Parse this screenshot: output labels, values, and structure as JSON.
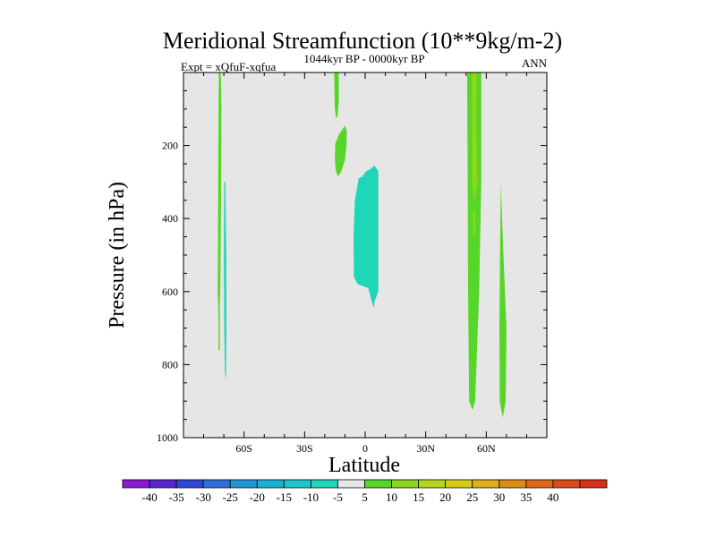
{
  "chart_data": {
    "type": "contour",
    "title": "Meridional Streamfunction (10**9kg/m-2)",
    "subtitle": "1044kyr BP - 0000kyr BP",
    "left_label": "Expt = xQfuF-xqfua",
    "right_label": "ANN",
    "xlabel": "Latitude",
    "ylabel": "Pressure (in hPa)",
    "xlim": [
      -90,
      90
    ],
    "ylim": [
      0,
      1000
    ],
    "y_inverted": true,
    "x_ticks": [
      {
        "value": -60,
        "label": "60S"
      },
      {
        "value": -30,
        "label": "30S"
      },
      {
        "value": 0,
        "label": "0"
      },
      {
        "value": 30,
        "label": "30N"
      },
      {
        "value": 60,
        "label": "60N"
      }
    ],
    "y_ticks": [
      {
        "value": 200,
        "label": "200"
      },
      {
        "value": 400,
        "label": "400"
      },
      {
        "value": 600,
        "label": "600"
      },
      {
        "value": 800,
        "label": "800"
      },
      {
        "value": 1000,
        "label": "1000"
      }
    ],
    "colorbar": {
      "colors": [
        "#8a1ad6",
        "#5a24d4",
        "#2d47d8",
        "#2f6fd8",
        "#2196d6",
        "#18b0d6",
        "#1ac6d0",
        "#1ed6b8",
        "#e6e6e6",
        "#56d628",
        "#8ed61a",
        "#b6d61a",
        "#d8cc1a",
        "#e0b018",
        "#e08c16",
        "#e0661a",
        "#de4a1a",
        "#d83018"
      ],
      "labels": [
        "-40",
        "-35",
        "-30",
        "-25",
        "-20",
        "-15",
        "-10",
        "-5",
        "5",
        "10",
        "15",
        "20",
        "25",
        "30",
        "35",
        "40"
      ]
    },
    "features": [
      {
        "name": "strip-70s-positive",
        "level": 5,
        "color": "#56d628",
        "points": [
          [
            -72.5,
            0
          ],
          [
            -71.5,
            0
          ],
          [
            -71.2,
            100
          ],
          [
            -71.3,
            300
          ],
          [
            -71.8,
            600
          ],
          [
            -72.5,
            700
          ],
          [
            -73,
            600
          ],
          [
            -72.8,
            300
          ],
          [
            -72.6,
            100
          ]
        ]
      },
      {
        "name": "strip-70s-lower",
        "level": 5,
        "color": "#56d628",
        "points": [
          [
            -72.6,
            600
          ],
          [
            -72,
            600
          ],
          [
            -72,
            760
          ],
          [
            -72.6,
            760
          ]
        ]
      },
      {
        "name": "strip-70s-negative",
        "level": -5,
        "color": "#1ed6b8",
        "points": [
          [
            -69.8,
            300
          ],
          [
            -69.2,
            300
          ],
          [
            -68.8,
            500
          ],
          [
            -68.7,
            700
          ],
          [
            -69,
            840
          ],
          [
            -69.5,
            820
          ],
          [
            -69.8,
            700
          ],
          [
            -70,
            500
          ]
        ]
      },
      {
        "name": "upper-15s-positive",
        "level": 5,
        "color": "#56d628",
        "points": [
          [
            -15.3,
            0
          ],
          [
            -13.1,
            0
          ],
          [
            -13.1,
            80
          ],
          [
            -13.7,
            120
          ],
          [
            -14.5,
            125
          ],
          [
            -15.1,
            90
          ]
        ]
      },
      {
        "name": "mid-15s-positive",
        "level": 5,
        "color": "#56d628",
        "points": [
          [
            -9.2,
            200
          ],
          [
            -9.1,
            160
          ],
          [
            -10,
            145
          ],
          [
            -13,
            170
          ],
          [
            -14.8,
            195
          ],
          [
            -15,
            240
          ],
          [
            -14.5,
            270
          ],
          [
            -13.4,
            285
          ],
          [
            -11.8,
            270
          ],
          [
            -10,
            240
          ]
        ]
      },
      {
        "name": "equatorial-negative",
        "level": -5,
        "color": "#1ed6b8",
        "points": [
          [
            4.6,
            255
          ],
          [
            6.5,
            270
          ],
          [
            6.5,
            600
          ],
          [
            4.5,
            630
          ],
          [
            4.5,
            645
          ],
          [
            3.4,
            630
          ],
          [
            1.5,
            590
          ],
          [
            -3.6,
            580
          ],
          [
            -5.6,
            560
          ],
          [
            -5.7,
            450
          ],
          [
            -5.1,
            350
          ],
          [
            -3.2,
            290
          ],
          [
            -1.4,
            285
          ],
          [
            0.5,
            270
          ],
          [
            2.5,
            265
          ]
        ]
      },
      {
        "name": "strip-50n-positive",
        "level": 5,
        "color": "#56d628",
        "points": [
          [
            50.5,
            0
          ],
          [
            57.5,
            0
          ],
          [
            57.5,
            300
          ],
          [
            56.5,
            600
          ],
          [
            54.5,
            900
          ],
          [
            53.2,
            925
          ],
          [
            51.5,
            900
          ],
          [
            51,
            600
          ],
          [
            50.8,
            300
          ]
        ]
      },
      {
        "name": "strip-50n-core",
        "level": 10,
        "color": "#8ed61a",
        "points": [
          [
            52.8,
            0
          ],
          [
            55.3,
            0
          ],
          [
            55.1,
            120
          ],
          [
            55.5,
            300
          ],
          [
            54.2,
            360
          ],
          [
            53,
            300
          ],
          [
            52.9,
            150
          ]
        ]
      },
      {
        "name": "strip-50n-core-2",
        "level": 10,
        "color": "#8ed61a",
        "points": [
          [
            53.3,
            380
          ],
          [
            54.6,
            380
          ],
          [
            54.4,
            450
          ],
          [
            53.5,
            450
          ]
        ]
      },
      {
        "name": "strip-67n-positive",
        "level": 5,
        "color": "#56d628",
        "points": [
          [
            67.2,
            300
          ],
          [
            67.5,
            350
          ],
          [
            68.5,
            500
          ],
          [
            70,
            700
          ],
          [
            69.6,
            900
          ],
          [
            68.2,
            945
          ],
          [
            66.7,
            900
          ],
          [
            66.5,
            700
          ],
          [
            66.8,
            500
          ]
        ]
      }
    ]
  }
}
